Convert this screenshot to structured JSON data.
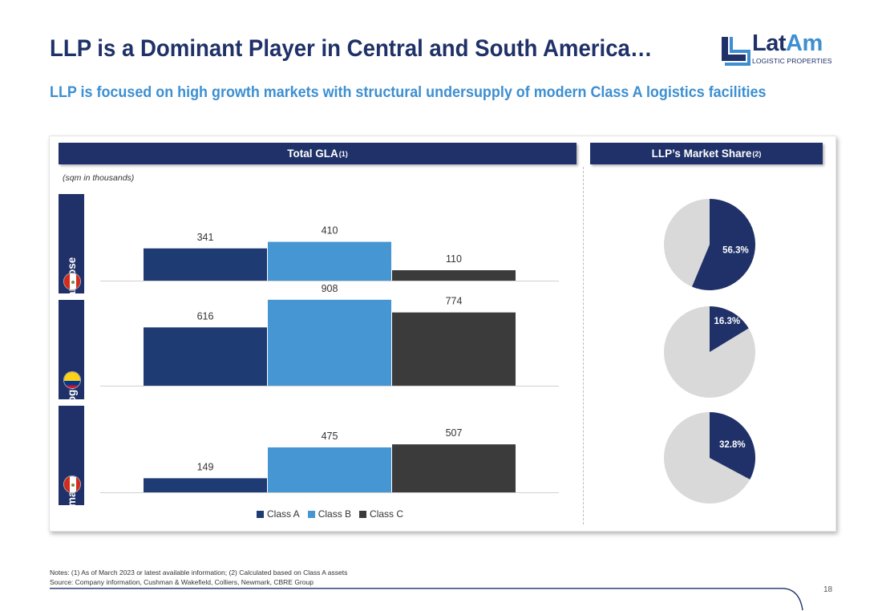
{
  "title": "LLP is a Dominant Player in Central and South America…",
  "subtitle": "LLP is focused on high growth markets with structural undersupply of modern Class A logistics facilities",
  "logo": {
    "main_a": "Lat",
    "main_b": "Am",
    "sub": "LOGISTIC PROPERTIES"
  },
  "left_header": {
    "text": "Total GLA",
    "sup": "(1)"
  },
  "right_header": {
    "text": "LLP’s Market Share",
    "sup": "(2)"
  },
  "unit_note": "(sqm in thousands)",
  "colors": {
    "navy": "#1f3168",
    "accent": "#3d8fd1",
    "class_a": "#1f3b73",
    "class_b": "#4596d3",
    "class_c": "#3b3b3b",
    "pie_bg": "#d9d9d9"
  },
  "chart_data": [
    {
      "type": "bar",
      "series_names": [
        "Class A",
        "Class B",
        "Class C"
      ],
      "groups": [
        {
          "city": "San Jose",
          "values": [
            341,
            410,
            110
          ]
        },
        {
          "city": "Bogota",
          "values": [
            616,
            908,
            774
          ]
        },
        {
          "city": "Lima",
          "values": [
            149,
            475,
            507
          ]
        }
      ]
    },
    {
      "type": "pie",
      "slices": [
        {
          "city": "San Jose",
          "share": 56.3,
          "label": "56.3%"
        },
        {
          "city": "Bogota",
          "share": 16.3,
          "label": "16.3%"
        },
        {
          "city": "Lima",
          "share": 32.8,
          "label": "32.8%"
        }
      ]
    }
  ],
  "cities": [
    "San Jose",
    "Bogota",
    "Lima"
  ],
  "legend": [
    "Class A",
    "Class B",
    "Class C"
  ],
  "notes": {
    "line1": "Notes: (1) As of March 2023 or latest available information; (2) Calculated based on Class A assets",
    "line2": "Source: Company information, Cushman & Wakefield, Colliers, Newmark, CBRE Group"
  },
  "page_number": "18"
}
